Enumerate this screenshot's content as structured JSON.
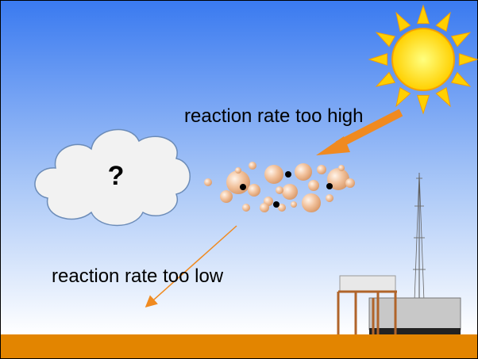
{
  "labels": {
    "high": "reaction rate too high",
    "question": "?",
    "low": "reaction rate too low"
  }
}
